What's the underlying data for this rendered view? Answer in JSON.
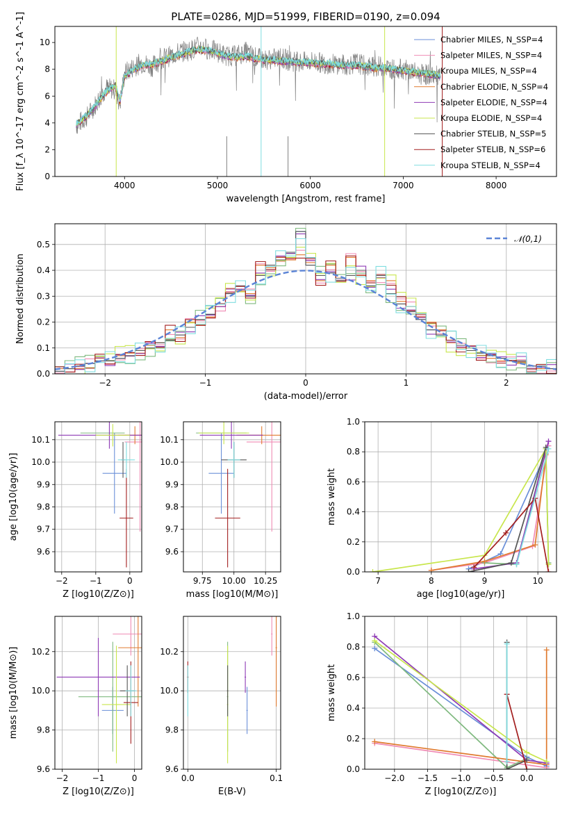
{
  "figure": {
    "title": "PLATE=0286, MJD=51999, FIBERID=0190, z=0.094"
  },
  "colors": {
    "chabrier_miles": "#6a8fd8",
    "salpeter_miles": "#f08bb4",
    "kroupa_miles": "#7fb97f",
    "chabrier_elodie": "#e07a2e",
    "salpeter_elodie": "#8e3ab5",
    "kroupa_elodie": "#c8e64c",
    "chabrier_stelib": "#555555",
    "salpeter_stelib": "#a31f1f",
    "kroupa_stelib": "#7fdde0",
    "normal": "#5b84d6"
  },
  "chart_data": [
    {
      "type": "line",
      "title": "PLATE=0286, MJD=51999, FIBERID=0190, z=0.094",
      "xlabel": "wavelength [Angstrom, rest frame]",
      "ylabel": "Flux [f_λ 10^-17 erg cm^-2 s^-1 A^-1]",
      "xlim": [
        3250,
        8650
      ],
      "ylim": [
        0,
        11.2
      ],
      "xticks": [
        4000,
        5000,
        6000,
        7000,
        8000
      ],
      "yticks": [
        0,
        2,
        4,
        6,
        8,
        10
      ],
      "legend_position": "top-right",
      "legend": [
        "Chabrier MILES, N_SSP=4",
        "Salpeter MILES, N_SSP=4",
        "Kroupa MILES, N_SSP=4",
        "Chabrier ELODIE, N_SSP=4",
        "Salpeter ELODIE, N_SSP=4",
        "Kroupa ELODIE, N_SSP=4",
        "Chabrier STELIB, N_SSP=5",
        "Salpeter STELIB, N_SSP=6",
        "Kroupa STELIB, N_SSP=4"
      ],
      "data_x": [
        3480,
        3600,
        3700,
        3800,
        3900,
        3950,
        4000,
        4100,
        4200,
        4300,
        4400,
        4500,
        4600,
        4700,
        4800,
        4900,
        5000,
        5100,
        5200,
        5300,
        5400,
        5500,
        5600,
        5700,
        5800,
        5900,
        6000,
        6100,
        6200,
        6300,
        6400,
        6500,
        6600,
        6700,
        6800,
        6900,
        7000,
        7100,
        7200,
        7300,
        7400
      ],
      "data_y": [
        3.8,
        4.5,
        5.5,
        6.6,
        6.5,
        5.4,
        7.7,
        8.2,
        8.5,
        8.2,
        8.8,
        9.0,
        9.3,
        9.4,
        9.7,
        9.5,
        9.3,
        9.0,
        9.0,
        9.3,
        8.9,
        8.7,
        8.8,
        8.8,
        8.6,
        8.5,
        8.6,
        8.5,
        8.4,
        8.4,
        8.3,
        8.5,
        8.2,
        8.2,
        8.2,
        8.0,
        8.0,
        7.8,
        7.6,
        7.6,
        7.4
      ],
      "model_y": [
        3.9,
        4.6,
        5.4,
        6.3,
        6.8,
        5.6,
        7.5,
        8.0,
        8.3,
        8.4,
        8.6,
        8.9,
        9.1,
        9.3,
        9.5,
        9.4,
        9.2,
        9.0,
        8.9,
        9.0,
        8.8,
        8.7,
        8.7,
        8.6,
        8.6,
        8.5,
        8.5,
        8.4,
        8.4,
        8.3,
        8.3,
        8.3,
        8.2,
        8.1,
        8.1,
        8.0,
        7.9,
        7.8,
        7.7,
        7.6,
        7.5
      ]
    },
    {
      "type": "area",
      "xlabel": "(data-model)/error",
      "ylabel": "Normed distribution",
      "xlim": [
        -2.5,
        2.5
      ],
      "ylim": [
        0,
        0.58
      ],
      "xticks": [
        -2,
        -1,
        0,
        1,
        2
      ],
      "yticks": [
        0.0,
        0.1,
        0.2,
        0.3,
        0.4,
        0.5
      ],
      "legend_position": "top-right",
      "legend": [
        "𝒩(0,1)"
      ],
      "bin_edges": [
        -2.5,
        -2.4,
        -2.3,
        -2.2,
        -2.1,
        -2.0,
        -1.9,
        -1.8,
        -1.7,
        -1.6,
        -1.5,
        -1.4,
        -1.3,
        -1.2,
        -1.1,
        -1.0,
        -0.9,
        -0.8,
        -0.7,
        -0.6,
        -0.5,
        -0.4,
        -0.3,
        -0.2,
        -0.1,
        0.0,
        0.1,
        0.2,
        0.3,
        0.4,
        0.5,
        0.6,
        0.7,
        0.8,
        0.9,
        1.0,
        1.1,
        1.2,
        1.3,
        1.4,
        1.5,
        1.6,
        1.7,
        1.8,
        1.9,
        2.0,
        2.1,
        2.2,
        2.3,
        2.4,
        2.5
      ],
      "series": [
        {
          "values": [
            0.01,
            0.02,
            0.03,
            0.04,
            0.05,
            0.05,
            0.06,
            0.07,
            0.09,
            0.1,
            0.12,
            0.13,
            0.15,
            0.18,
            0.21,
            0.23,
            0.27,
            0.31,
            0.34,
            0.3,
            0.38,
            0.42,
            0.44,
            0.47,
            0.55,
            0.42,
            0.38,
            0.39,
            0.36,
            0.38,
            0.4,
            0.34,
            0.38,
            0.31,
            0.27,
            0.24,
            0.21,
            0.17,
            0.15,
            0.13,
            0.11,
            0.09,
            0.08,
            0.07,
            0.06,
            0.05,
            0.05,
            0.03,
            0.03,
            0.02
          ]
        },
        {
          "values": [
            0.02,
            0.02,
            0.02,
            0.04,
            0.06,
            0.05,
            0.07,
            0.08,
            0.08,
            0.11,
            0.12,
            0.17,
            0.14,
            0.2,
            0.19,
            0.22,
            0.26,
            0.33,
            0.32,
            0.31,
            0.42,
            0.41,
            0.45,
            0.44,
            0.46,
            0.43,
            0.36,
            0.42,
            0.37,
            0.45,
            0.38,
            0.36,
            0.37,
            0.36,
            0.28,
            0.26,
            0.22,
            0.2,
            0.17,
            0.12,
            0.1,
            0.09,
            0.07,
            0.06,
            0.05,
            0.05,
            0.04,
            0.02,
            0.02,
            0.02
          ]
        }
      ],
      "normal": {
        "mu": 0,
        "sigma": 1
      }
    },
    {
      "type": "scatter",
      "xlabel": "Z [log10(Z/Z⊙)]",
      "ylabel": "age [log10(age/yr)]",
      "xlim": [
        -2.2,
        0.35
      ],
      "ylim": [
        9.51,
        10.18
      ],
      "xticks": [
        -2,
        -1,
        0
      ],
      "yticks": [
        9.6,
        9.7,
        9.8,
        9.9,
        10.0,
        10.1
      ],
      "points": [
        {
          "x": -0.45,
          "y": 9.95,
          "xerr": 0.35,
          "yerr": 0.18
        },
        {
          "x": 0.3,
          "y": 10.09,
          "xerr": 0.45,
          "yerr": 0.4
        },
        {
          "x": -0.8,
          "y": 10.13,
          "xerr": 0.65,
          "yerr": 0.0
        },
        {
          "x": 0.15,
          "y": 10.12,
          "xerr": 0.5,
          "yerr": 0.04
        },
        {
          "x": -0.6,
          "y": 10.12,
          "xerr": 1.5,
          "yerr": 0.06
        },
        {
          "x": -0.5,
          "y": 10.12,
          "xerr": 0.5,
          "yerr": 0.05
        },
        {
          "x": -0.2,
          "y": 10.01,
          "xerr": 0.05,
          "yerr": 0.08
        },
        {
          "x": -0.1,
          "y": 9.75,
          "xerr": 0.2,
          "yerr": 0.22
        },
        {
          "x": -0.1,
          "y": 10.01,
          "xerr": 0.25,
          "yerr": 0.08
        }
      ]
    },
    {
      "type": "scatter",
      "xlabel": "mass [log10(M/M⊙)]",
      "ylabel": "",
      "xlim": [
        9.6,
        10.37
      ],
      "ylim": [
        9.51,
        10.18
      ],
      "xticks": [
        9.75,
        10.0,
        10.25
      ],
      "yticks": [
        9.6,
        9.7,
        9.8,
        9.9,
        10.0,
        10.1
      ],
      "points": [
        {
          "x": 9.9,
          "y": 9.95,
          "xerr": 0.1,
          "yerr": 0.18
        },
        {
          "x": 10.3,
          "y": 10.09,
          "xerr": 0.2,
          "yerr": 0.4
        },
        {
          "x": 9.9,
          "y": 10.13,
          "xerr": 0.2,
          "yerr": 0.0
        },
        {
          "x": 10.22,
          "y": 10.12,
          "xerr": 0.2,
          "yerr": 0.04
        },
        {
          "x": 9.98,
          "y": 10.12,
          "xerr": 0.25,
          "yerr": 0.06
        },
        {
          "x": 9.92,
          "y": 10.13,
          "xerr": 0.2,
          "yerr": 0.05
        },
        {
          "x": 10.0,
          "y": 10.01,
          "xerr": 0.1,
          "yerr": 0.08
        },
        {
          "x": 9.95,
          "y": 9.75,
          "xerr": 0.1,
          "yerr": 0.22
        },
        {
          "x": 10.0,
          "y": 10.01,
          "xerr": 0.05,
          "yerr": 0.08
        }
      ]
    },
    {
      "type": "line",
      "xlabel": "age [log10(age/yr)]",
      "ylabel": "mass weight",
      "xlim": [
        6.75,
        10.35
      ],
      "ylim": [
        0,
        1.0
      ],
      "xticks": [
        7,
        8,
        9,
        10
      ],
      "yticks": [
        0.0,
        0.2,
        0.4,
        0.6,
        0.8,
        1.0
      ],
      "series": [
        {
          "x": [
            8.7,
            9.3,
            10.15,
            10.2
          ],
          "y": [
            0.02,
            0.12,
            0.79,
            0.05
          ]
        },
        {
          "x": [
            8.0,
            9.0,
            9.9,
            10.2
          ],
          "y": [
            0.01,
            0.06,
            0.17,
            0.84
          ]
        },
        {
          "x": [
            9.0,
            9.6,
            10.15,
            10.2
          ],
          "y": [
            0.06,
            0.05,
            0.82,
            0.06
          ]
        },
        {
          "x": [
            8.0,
            9.0,
            9.95,
            10.15
          ],
          "y": [
            0.01,
            0.07,
            0.18,
            0.78
          ]
        },
        {
          "x": [
            8.8,
            9.6,
            10.2
          ],
          "y": [
            0.02,
            0.06,
            0.87
          ]
        },
        {
          "x": [
            6.9,
            9.0,
            10.15,
            10.2
          ],
          "y": [
            0.0,
            0.11,
            0.82,
            0.05
          ]
        },
        {
          "x": [
            8.7,
            9.5,
            10.15
          ],
          "y": [
            0.0,
            0.06,
            0.83
          ]
        },
        {
          "x": [
            8.8,
            9.4,
            9.95,
            10.2
          ],
          "y": [
            0.03,
            0.26,
            0.49,
            0.0
          ]
        },
        {
          "x": [
            9.6,
            10.2
          ],
          "y": [
            0.05,
            0.82
          ]
        }
      ]
    },
    {
      "type": "scatter",
      "xlabel": "Z [log10(Z/Z⊙)]",
      "ylabel": "mass [log10(M/M⊙)]",
      "xlim": [
        -2.2,
        0.2
      ],
      "ylim": [
        9.6,
        10.38
      ],
      "xticks": [
        -2,
        -1,
        0
      ],
      "yticks": [
        9.6,
        9.8,
        10.0,
        10.2
      ],
      "points": [
        {
          "x": -0.6,
          "y": 9.9,
          "xerr": 0.3,
          "yerr": 0.12
        },
        {
          "x": -0.1,
          "y": 10.29,
          "xerr": 0.5,
          "yerr": 0.11
        },
        {
          "x": -0.6,
          "y": 9.97,
          "xerr": 0.95,
          "yerr": 0.28
        },
        {
          "x": 0.1,
          "y": 10.22,
          "xerr": 0.55,
          "yerr": 0.3
        },
        {
          "x": -1.0,
          "y": 10.07,
          "xerr": 1.15,
          "yerr": 0.2
        },
        {
          "x": -0.5,
          "y": 9.93,
          "xerr": 0.4,
          "yerr": 0.3
        },
        {
          "x": -0.2,
          "y": 10.0,
          "xerr": 0.2,
          "yerr": 0.13
        },
        {
          "x": -0.1,
          "y": 9.94,
          "xerr": 0.2,
          "yerr": 0.21
        },
        {
          "x": -0.1,
          "y": 10.0,
          "xerr": 0.15,
          "yerr": 0.13
        }
      ]
    },
    {
      "type": "scatter",
      "xlabel": "E(B-V)",
      "ylabel": "",
      "xlim": [
        -0.005,
        0.105
      ],
      "ylim": [
        9.6,
        10.38
      ],
      "xticks": [
        0.0,
        0.1
      ],
      "yticks": [
        9.6,
        9.8,
        10.0,
        10.2
      ],
      "points": [
        {
          "x": 0.067,
          "y": 9.9,
          "yerr": 0.12
        },
        {
          "x": 0.095,
          "y": 10.29,
          "yerr": 0.11
        },
        {
          "x": 0.045,
          "y": 9.97,
          "yerr": 0.28
        },
        {
          "x": 0.1,
          "y": 10.22,
          "yerr": 0.3
        },
        {
          "x": 0.065,
          "y": 10.07,
          "yerr": 0.08
        },
        {
          "x": 0.045,
          "y": 9.93,
          "yerr": 0.3
        },
        {
          "x": 0.045,
          "y": 10.0,
          "yerr": 0.13
        },
        {
          "x": 0.0,
          "y": 10.07,
          "yerr": 0.08
        },
        {
          "x": 0.0,
          "y": 10.0,
          "yerr": 0.13
        }
      ]
    },
    {
      "type": "line",
      "xlabel": "Z [log10(Z/Z⊙)]",
      "ylabel": "mass weight",
      "xlim": [
        -2.45,
        0.45
      ],
      "ylim": [
        0,
        1.0
      ],
      "xticks": [
        -2.0,
        -1.5,
        -1.0,
        -0.5,
        0.0
      ],
      "yticks": [
        0.0,
        0.2,
        0.4,
        0.6,
        0.8,
        1.0
      ],
      "series": [
        {
          "x": [
            -2.3,
            0.0,
            0.3
          ],
          "y": [
            0.79,
            0.08,
            0.02
          ]
        },
        {
          "x": [
            -2.3,
            0.3,
            0.3
          ],
          "y": [
            0.17,
            0.01,
            0.03
          ]
        },
        {
          "x": [
            -2.3,
            -0.3,
            0.0
          ],
          "y": [
            0.83,
            0.01,
            0.07
          ]
        },
        {
          "x": [
            -2.3,
            0.3,
            0.3
          ],
          "y": [
            0.18,
            0.03,
            0.78
          ]
        },
        {
          "x": [
            -2.3,
            0.0,
            0.3
          ],
          "y": [
            0.87,
            0.06,
            0.04
          ]
        },
        {
          "x": [
            -2.3,
            0.0,
            0.3
          ],
          "y": [
            0.84,
            0.11,
            0.05
          ]
        },
        {
          "x": [
            -0.3,
            -0.3,
            0.0
          ],
          "y": [
            0.83,
            0.0,
            0.06
          ]
        },
        {
          "x": [
            -0.3,
            0.0
          ],
          "y": [
            0.49,
            0.0
          ]
        },
        {
          "x": [
            -0.3,
            -0.3
          ],
          "y": [
            0.82,
            0.05
          ]
        }
      ]
    }
  ]
}
